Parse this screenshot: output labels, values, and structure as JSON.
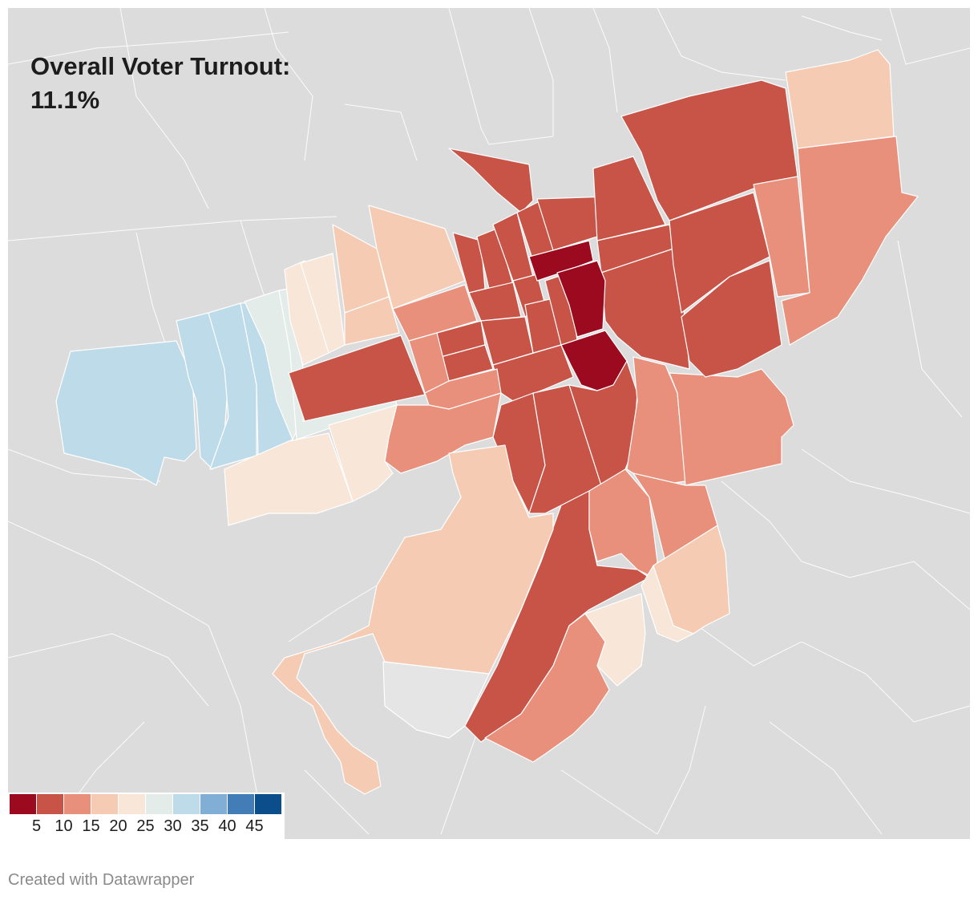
{
  "title": {
    "line1": "Overall Voter Turnout:",
    "line2": "11.1%"
  },
  "legend": {
    "colors": [
      "#9b0a1e",
      "#c75447",
      "#e8907b",
      "#f6cbb4",
      "#f8e6d9",
      "#e3ece8",
      "#bedbea",
      "#80aed4",
      "#437db8",
      "#0c4e8c"
    ],
    "ticks": [
      "5",
      "10",
      "15",
      "20",
      "25",
      "30",
      "35",
      "40",
      "45"
    ]
  },
  "map": {
    "background_color": "#dcdcdc",
    "no_data_color": "#e5e5e5"
  },
  "credit": "Created with Datawrapper"
}
